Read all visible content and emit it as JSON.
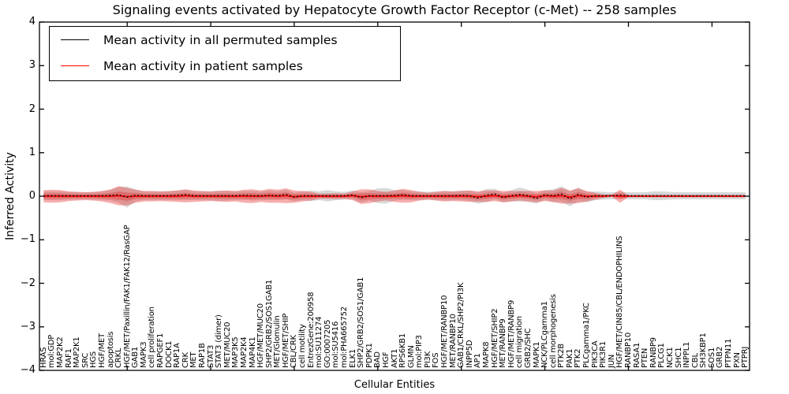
{
  "title": "Signaling events activated by Hepatocyte Growth Factor Receptor (c-Met) -- 258 samples",
  "legend": {
    "items": [
      {
        "label": "Mean activity in all permuted samples",
        "color": "#000000"
      },
      {
        "label": "Mean activity in patient samples",
        "color": "#ff0000"
      }
    ]
  },
  "axes": {
    "ylabel": "Inferred Activity",
    "xlabel": "Cellular Entities",
    "ytick_labels": [
      "4",
      "3",
      "2",
      "1",
      "0",
      "−1",
      "−2",
      "−3",
      "−4"
    ],
    "ytick_values": [
      4,
      3,
      2,
      1,
      0,
      -1,
      -2,
      -3,
      -4
    ]
  },
  "colors": {
    "permuted_line": "#000000",
    "patient_line": "#ff0000",
    "patient_band": "#ee3333",
    "permuted_band": "#999999",
    "spine": "#000000"
  },
  "chart_data": {
    "type": "line",
    "title": "Signaling events activated by Hepatocyte Growth Factor Receptor (c-Met) -- 258 samples",
    "xlabel": "Cellular Entities",
    "ylabel": "Inferred Activity",
    "ylim": [
      -4,
      4
    ],
    "grid": false,
    "legend_position": "upper left",
    "categories": [
      "HRAS",
      "mol:GDP",
      "MAP2K2",
      "RAF1",
      "MAP2K1",
      "SRC",
      "HGS",
      "HGF/MET",
      "apoptosis",
      "CRKL",
      "HGF/MET/Paxillin/FAK1/FAK12/RasGAP",
      "GAB1",
      "MAPK3",
      "cell proliferation",
      "RAPGEF1",
      "DOCK1",
      "RAP1A",
      "CRK",
      "MET",
      "RAP1B",
      "STAT3",
      "STAT3 (dimer)",
      "MET/MUC20",
      "MAP3K5",
      "MAP2K4",
      "MAP4K1",
      "HGF/MET/MUC20",
      "SHP2/GRB2/SOS1GAB1",
      "MET/Glomulin",
      "HGF/MET/SHIP",
      "CBL/CRK",
      "cell motility",
      "EntrezGene:200958",
      "mol:SU11274",
      "GO:0007205",
      "mol:SU5416",
      "mol:PHA665752",
      "ELK1",
      "SHP2/GRB2/SOS1/GAB1",
      "PDPK1",
      "BAD",
      "HGF",
      "AKT1",
      "RPS6KB1",
      "GLMN",
      "mol:PIP3",
      "PI3K",
      "FOS",
      "HGF/MET/RANBP10",
      "MET/RANBP10",
      "GAB1/CRKL/SHP2/PI3K",
      "INPP5D",
      "AP1",
      "MAPK8",
      "HGF/MET/SHIP2",
      "MET/RANBP9",
      "HGF/MET/RANBP9",
      "cell migration",
      "GRB2/SHC",
      "MAPK1",
      "NCK/PLCgamma1",
      "cell morphogenesis",
      "PTK2B",
      "PAK1",
      "PTK2",
      "PLCgamma1/PKC",
      "PIK3CA",
      "PIK3R1",
      "JUN",
      "HGF/MET/CIN85/CBL/ENDOPHILINS",
      "RANBP10",
      "RASA1",
      "PTEN",
      "RANBP9",
      "PLCG1",
      "NCK1",
      "SHC1",
      "INPPL1",
      "CBL",
      "SH3KBP1",
      "SOS1",
      "GRB2",
      "PTPN11",
      "PXN",
      "PTPRJ"
    ],
    "series": [
      {
        "name": "Mean activity in all permuted samples",
        "color": "#000000",
        "style": "dashed",
        "values": [
          0.01,
          0.01,
          0.01,
          0.01,
          0.01,
          0.01,
          0.01,
          0.01,
          0.02,
          0.03,
          -0.02,
          0.02,
          0.01,
          0.01,
          0.01,
          0.01,
          0.02,
          0.03,
          0.01,
          0.01,
          0.01,
          0.01,
          0.01,
          0.01,
          0.02,
          0.01,
          0.01,
          0.02,
          0.01,
          0.04,
          -0.02,
          0.01,
          0.01,
          0.01,
          0.01,
          0.01,
          0.01,
          0.03,
          -0.03,
          0.01,
          0.01,
          0.01,
          0.02,
          0.03,
          0.01,
          0.01,
          0.01,
          0.01,
          0.01,
          0.01,
          0.02,
          0.01,
          -0.04,
          0.02,
          0.05,
          -0.03,
          0.01,
          0.04,
          0.01,
          -0.05,
          0.03,
          0.01,
          0.05,
          -0.06,
          0.04,
          -0.02,
          0.01,
          0.01,
          0.01,
          0.02,
          0.01,
          0.01,
          0.01,
          0.01,
          0.01,
          0.01,
          0.01,
          0.01,
          0.01,
          0.01,
          0.01,
          0.01,
          0.01,
          0.01,
          0.01
        ]
      },
      {
        "name": "Mean activity in patient samples",
        "color": "#ff0000",
        "style": "solid",
        "values": [
          0,
          0,
          0,
          0,
          0,
          0,
          0,
          0,
          0,
          0.01,
          -0.01,
          0,
          0,
          0,
          0,
          0,
          0,
          0.01,
          0,
          0,
          0,
          0,
          0,
          0,
          0,
          0,
          0,
          0.01,
          0,
          0.01,
          -0.01,
          0,
          0,
          0,
          0,
          0,
          0,
          0.01,
          -0.01,
          0,
          0,
          0,
          0,
          0.01,
          0,
          0,
          0,
          0,
          0,
          0,
          0,
          0,
          -0.01,
          0,
          0.01,
          -0.01,
          0,
          0.01,
          0,
          -0.01,
          0.01,
          0,
          0.01,
          -0.02,
          0.01,
          0,
          0,
          0,
          0.01,
          0,
          0,
          0,
          0,
          0,
          0,
          0,
          0,
          0,
          0,
          0,
          0,
          0,
          0,
          0,
          0
        ]
      }
    ],
    "bands": [
      {
        "name": "permuted samples spread",
        "center_series": 0,
        "color": "#999999",
        "opacity": 0.38,
        "half_widths": [
          0.1,
          0.1,
          0.1,
          0.09,
          0.09,
          0.08,
          0.09,
          0.1,
          0.12,
          0.18,
          0.24,
          0.14,
          0.1,
          0.1,
          0.1,
          0.1,
          0.11,
          0.12,
          0.1,
          0.1,
          0.1,
          0.12,
          0.11,
          0.1,
          0.1,
          0.11,
          0.1,
          0.11,
          0.1,
          0.11,
          0.1,
          0.1,
          0.12,
          0.1,
          0.13,
          0.1,
          0.09,
          0.1,
          0.12,
          0.11,
          0.17,
          0.18,
          0.12,
          0.11,
          0.1,
          0.1,
          0.09,
          0.1,
          0.11,
          0.1,
          0.11,
          0.12,
          0.13,
          0.15,
          0.12,
          0.11,
          0.13,
          0.16,
          0.14,
          0.12,
          0.11,
          0.15,
          0.18,
          0.17,
          0.16,
          0.12,
          0.1,
          0.09,
          0.08,
          0.08,
          0.08,
          0.08,
          0.08,
          0.1,
          0.1,
          0.09,
          0.08,
          0.08,
          0.08,
          0.08,
          0.08,
          0.08,
          0.08,
          0.08,
          0.08
        ]
      },
      {
        "name": "patient samples spread",
        "center_series": 1,
        "color": "#ee3333",
        "opacity": 0.4,
        "half_widths": [
          0.14,
          0.15,
          0.14,
          0.11,
          0.1,
          0.09,
          0.1,
          0.12,
          0.16,
          0.22,
          0.2,
          0.15,
          0.12,
          0.12,
          0.11,
          0.12,
          0.13,
          0.15,
          0.13,
          0.12,
          0.11,
          0.12,
          0.13,
          0.12,
          0.15,
          0.16,
          0.13,
          0.16,
          0.15,
          0.17,
          0.14,
          0.12,
          0.1,
          0.06,
          0.06,
          0.07,
          0.06,
          0.1,
          0.17,
          0.16,
          0.12,
          0.1,
          0.13,
          0.16,
          0.14,
          0.1,
          0.08,
          0.1,
          0.12,
          0.11,
          0.12,
          0.13,
          0.12,
          0.13,
          0.12,
          0.13,
          0.12,
          0.11,
          0.12,
          0.13,
          0.12,
          0.13,
          0.18,
          0.15,
          0.17,
          0.12,
          0.08,
          0.04,
          0.02,
          0.15,
          0.02,
          0.02,
          0.02,
          0.02,
          0.02,
          0.02,
          0.02,
          0.02,
          0.02,
          0.02,
          0.02,
          0.02,
          0.02,
          0.02,
          0.02
        ]
      }
    ]
  }
}
